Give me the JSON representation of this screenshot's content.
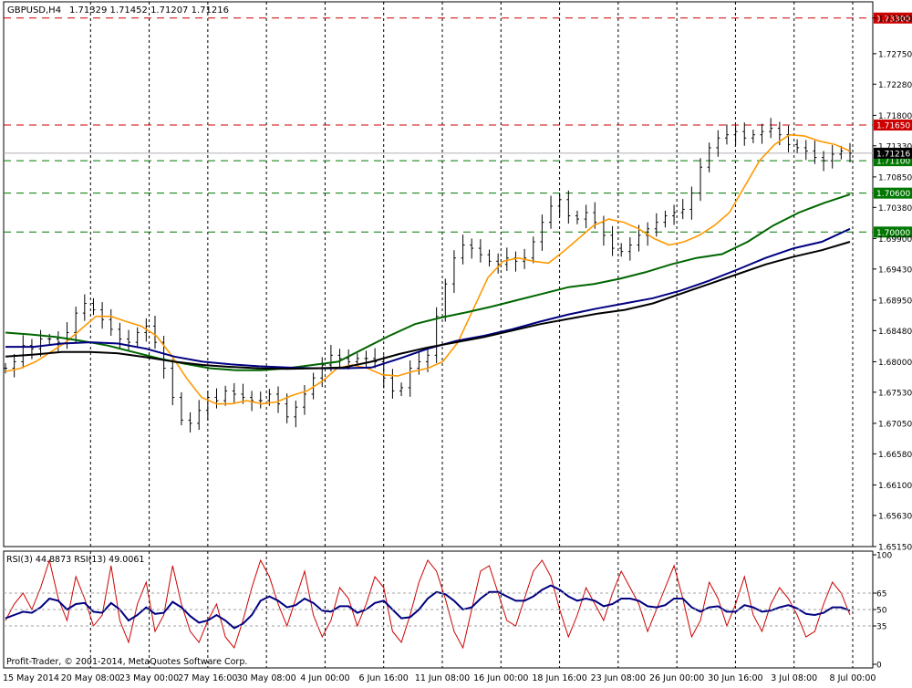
{
  "header": {
    "symbol": "GBPUSD,H4",
    "ohlc": "1.71329 1.71452 1.71207 1.71216"
  },
  "footer": {
    "copyright": "Profit-Trader, © 2001-2014, MetaQuotes Software Corp."
  },
  "rsi_panel": {
    "label": "RSI(3) 44.8873  RSI(13) 49.0061",
    "levels": [
      100,
      65,
      50,
      35,
      0
    ],
    "rsi_fast_color": "#cc0000",
    "rsi_slow_color": "#000080"
  },
  "chart_data": {
    "type": "line",
    "symbol": "GBPUSD",
    "timeframe": "H4",
    "ylim": [
      1.6515,
      1.7355
    ],
    "y_ticks": [
      "1.73300",
      "1.72750",
      "1.72280",
      "1.71800",
      "1.71330",
      "1.70850",
      "1.70380",
      "1.69900",
      "1.69430",
      "1.68950",
      "1.68480",
      "1.68000",
      "1.67530",
      "1.67050",
      "1.66580",
      "1.66100",
      "1.65630",
      "1.65150"
    ],
    "x_ticks": [
      "15 May 2014",
      "20 May 08:00",
      "23 May 00:00",
      "27 May 16:00",
      "30 May 08:00",
      "4 Jun 00:00",
      "6 Jun 16:00",
      "11 Jun 08:00",
      "16 Jun 00:00",
      "18 Jun 16:00",
      "23 Jun 08:00",
      "26 Jun 00:00",
      "30 Jun 16:00",
      "3 Jul 08:00",
      "8 Jul 00:00"
    ],
    "horizontal_levels": [
      {
        "value": 1.733,
        "label": "1.73300",
        "color": "#cc0000"
      },
      {
        "value": 1.7165,
        "label": "1.71650",
        "color": "#cc0000"
      },
      {
        "value": 1.711,
        "label": "1.71100",
        "color": "#007700"
      },
      {
        "value": 1.706,
        "label": "1.70600",
        "color": "#007700"
      },
      {
        "value": 1.7,
        "label": "1.70000",
        "color": "#007700"
      }
    ],
    "current_price": {
      "value": 1.71216,
      "label": "1.71216"
    },
    "price_close": [
      1.679,
      1.68,
      1.6825,
      1.682,
      1.6835,
      1.6835,
      1.683,
      1.6845,
      1.6875,
      1.689,
      1.688,
      1.6865,
      1.685,
      1.6835,
      1.683,
      1.6845,
      1.6855,
      1.683,
      1.679,
      1.6745,
      1.671,
      1.6705,
      1.6725,
      1.6745,
      1.674,
      1.6755,
      1.675,
      1.6745,
      1.674,
      1.674,
      1.675,
      1.6735,
      1.6715,
      1.673,
      1.675,
      1.6775,
      1.6795,
      1.681,
      1.6805,
      1.68,
      1.6805,
      1.6805,
      1.68,
      1.6775,
      1.6755,
      1.676,
      1.679,
      1.68,
      1.681,
      1.687,
      1.692,
      1.696,
      1.698,
      1.6975,
      1.6965,
      1.6955,
      1.695,
      1.696,
      1.6955,
      1.696,
      1.6985,
      1.7015,
      1.704,
      1.705,
      1.7025,
      1.702,
      1.703,
      1.7015,
      1.6995,
      1.6975,
      1.697,
      1.698,
      1.6995,
      1.7005,
      1.7015,
      1.7025,
      1.703,
      1.7035,
      1.706,
      1.71,
      1.713,
      1.7145,
      1.715,
      1.7155,
      1.7145,
      1.715,
      1.7155,
      1.716,
      1.715,
      1.7135,
      1.713,
      1.7125,
      1.7115,
      1.711,
      1.712,
      1.7125,
      1.71216
    ],
    "series": [
      {
        "name": "",
        "color": "#ff9900",
        "values": [
          1.6785,
          1.679,
          1.68,
          1.6815,
          1.683,
          1.685,
          1.687,
          1.687,
          1.6862,
          1.6855,
          1.684,
          1.681,
          1.6775,
          1.6745,
          1.6735,
          1.6735,
          1.674,
          1.6735,
          1.6738,
          1.6748,
          1.6755,
          1.677,
          1.679,
          1.6795,
          1.679,
          1.678,
          1.6778,
          1.6785,
          1.679,
          1.68,
          1.683,
          1.688,
          1.693,
          1.6955,
          1.696,
          1.6955,
          1.6952,
          1.697,
          1.699,
          1.701,
          1.702,
          1.7015,
          1.7005,
          1.699,
          1.698,
          1.6985,
          1.6995,
          1.701,
          1.703,
          1.707,
          1.711,
          1.7135,
          1.715,
          1.7148,
          1.714,
          1.7135,
          1.7125
        ]
      },
      {
        "name": "",
        "color": "#006600",
        "values": [
          1.6845,
          1.6842,
          1.6838,
          1.6832,
          1.6825,
          1.6815,
          1.6805,
          1.6797,
          1.679,
          1.6787,
          1.6787,
          1.679,
          1.6795,
          1.68,
          1.682,
          1.684,
          1.6858,
          1.6868,
          1.6876,
          1.6885,
          1.6895,
          1.6905,
          1.6915,
          1.692,
          1.6928,
          1.6938,
          1.695,
          1.696,
          1.6966,
          1.6985,
          1.701,
          1.703,
          1.7045,
          1.7058
        ]
      },
      {
        "name": "",
        "color": "#000080",
        "values": [
          1.6823,
          1.6823,
          1.6828,
          1.683,
          1.6828,
          1.682,
          1.6808,
          1.68,
          1.6796,
          1.6793,
          1.6791,
          1.679,
          1.679,
          1.6791,
          1.6805,
          1.682,
          1.6832,
          1.684,
          1.685,
          1.6862,
          1.6873,
          1.6882,
          1.689,
          1.6898,
          1.691,
          1.6925,
          1.6942,
          1.696,
          1.6975,
          1.6985,
          1.7005
        ]
      },
      {
        "name": "",
        "color": "#000000",
        "values": [
          1.6808,
          1.6811,
          1.6815,
          1.6815,
          1.6813,
          1.6807,
          1.68,
          1.6795,
          1.6792,
          1.679,
          1.6789,
          1.679,
          1.6791,
          1.68,
          1.6812,
          1.6822,
          1.683,
          1.6838,
          1.6848,
          1.6858,
          1.6866,
          1.6874,
          1.688,
          1.689,
          1.6905,
          1.692,
          1.6935,
          1.695,
          1.6962,
          1.6972,
          1.6985
        ]
      }
    ],
    "rsi_fast": [
      40,
      55,
      65,
      50,
      70,
      95,
      60,
      40,
      80,
      60,
      35,
      45,
      90,
      40,
      20,
      55,
      75,
      30,
      45,
      90,
      55,
      30,
      20,
      40,
      55,
      25,
      15,
      40,
      70,
      95,
      80,
      55,
      35,
      60,
      85,
      45,
      25,
      40,
      70,
      60,
      35,
      55,
      80,
      70,
      30,
      20,
      45,
      75,
      95,
      85,
      60,
      30,
      15,
      50,
      85,
      90,
      65,
      40,
      35,
      60,
      85,
      95,
      80,
      50,
      25,
      45,
      70,
      55,
      40,
      65,
      85,
      70,
      55,
      30,
      50,
      70,
      90,
      60,
      25,
      40,
      75,
      60,
      35,
      55,
      80,
      45,
      30,
      55,
      70,
      60,
      45,
      25,
      30,
      55,
      75,
      65,
      45
    ],
    "rsi_slow": [
      42,
      45,
      48,
      47,
      52,
      60,
      58,
      50,
      55,
      56,
      48,
      47,
      56,
      50,
      40,
      45,
      52,
      46,
      47,
      57,
      52,
      44,
      38,
      40,
      45,
      40,
      33,
      37,
      45,
      58,
      62,
      58,
      52,
      54,
      60,
      56,
      49,
      48,
      53,
      53,
      47,
      50,
      56,
      58,
      50,
      42,
      43,
      50,
      60,
      66,
      64,
      58,
      50,
      52,
      60,
      66,
      66,
      62,
      58,
      58,
      62,
      68,
      72,
      68,
      62,
      58,
      60,
      58,
      53,
      55,
      60,
      60,
      58,
      53,
      52,
      54,
      60,
      60,
      52,
      48,
      52,
      53,
      48,
      48,
      54,
      52,
      48,
      49,
      52,
      54,
      51,
      46,
      45,
      47,
      52,
      52,
      49
    ]
  }
}
